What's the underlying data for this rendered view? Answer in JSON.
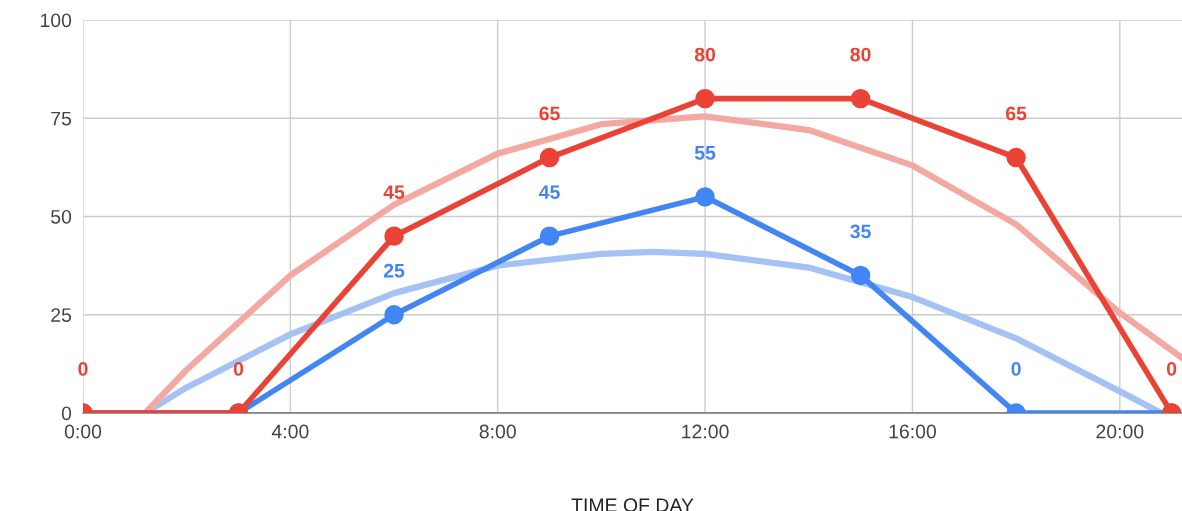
{
  "chart_data": {
    "type": "line",
    "xlabel": "TIME OF DAY",
    "x": [
      0,
      3,
      6,
      9,
      12,
      15,
      18,
      21
    ],
    "series": [
      {
        "color": "#a4c2f4",
        "marker": "none",
        "x": [
          1.2,
          2,
          4,
          6,
          8,
          10,
          11,
          12,
          14,
          16,
          18,
          20,
          20.8
        ],
        "values": [
          0,
          6.5,
          20,
          30.5,
          37.5,
          40.5,
          41,
          40.5,
          37,
          29.5,
          19,
          5.5,
          0
        ]
      },
      {
        "color": "#f4a8a2",
        "marker": "none",
        "x": [
          1.2,
          2,
          4,
          6,
          8,
          10,
          12,
          14,
          16,
          18,
          20,
          21.2
        ],
        "values": [
          0,
          11,
          35,
          53,
          66,
          73.5,
          75.5,
          72,
          63,
          48,
          25.5,
          14
        ]
      },
      {
        "color": "#4285f4",
        "marker": "circle",
        "values": [
          0,
          0,
          25,
          45,
          55,
          35,
          0,
          0
        ],
        "value_labels": [
          null,
          null,
          "25",
          "45",
          "55",
          "35",
          "0",
          null
        ]
      },
      {
        "color": "#ea4335",
        "marker": "circle",
        "values": [
          0,
          0,
          45,
          65,
          80,
          80,
          65,
          0
        ],
        "value_labels": [
          "0",
          "0",
          "45",
          "65",
          "80",
          "80",
          "65",
          "0"
        ]
      }
    ],
    "xlim": [
      0,
      21.2
    ],
    "xticks": [
      {
        "value": 0,
        "label": "0:00"
      },
      {
        "value": 4,
        "label": "4:00"
      },
      {
        "value": 8,
        "label": "8:00"
      },
      {
        "value": 12,
        "label": "12:00"
      },
      {
        "value": 16,
        "label": "16:00"
      },
      {
        "value": 20,
        "label": "20:00"
      }
    ],
    "ylim": [
      0,
      100
    ],
    "yticks": [
      0,
      25,
      50,
      75,
      100
    ],
    "grid": true,
    "line_style": "solid"
  }
}
